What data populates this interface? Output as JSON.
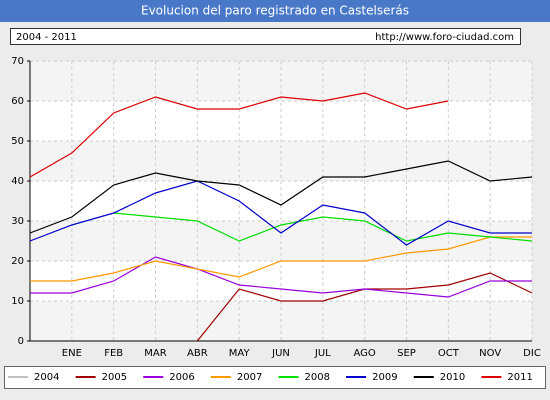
{
  "chart_data": {
    "type": "line",
    "title": "Evolucion del paro registrado en Castelserás",
    "subtitle": "2004 - 2011",
    "source": "http://www.foro-ciudad.com",
    "categories": [
      null,
      "ENE",
      "FEB",
      "MAR",
      "ABR",
      "MAY",
      "JUN",
      "JUL",
      "AGO",
      "SEP",
      "OCT",
      "NOV",
      "DIC"
    ],
    "ylim": [
      0,
      70
    ],
    "yticks": [
      0,
      10,
      20,
      30,
      40,
      50,
      60,
      70
    ],
    "grid": true,
    "legend": "bottom",
    "series": [
      {
        "name": "2004",
        "color": "#c0c0c0",
        "values": [
          null,
          null,
          null,
          null,
          null,
          null,
          null,
          null,
          null,
          null,
          null,
          null,
          null
        ]
      },
      {
        "name": "2005",
        "color": "#a00000",
        "values": [
          null,
          null,
          null,
          null,
          0,
          13,
          10,
          10,
          13,
          13,
          14,
          17,
          12
        ]
      },
      {
        "name": "2006",
        "color": "#9900dd",
        "values": [
          12,
          12,
          15,
          21,
          18,
          14,
          13,
          12,
          13,
          12,
          11,
          15,
          15
        ]
      },
      {
        "name": "2007",
        "color": "#ff9900",
        "values": [
          15,
          15,
          17,
          20,
          18,
          16,
          20,
          20,
          20,
          22,
          23,
          26,
          26
        ]
      },
      {
        "name": "2008",
        "color": "#00dd00",
        "values": [
          null,
          null,
          32,
          31,
          30,
          25,
          29,
          31,
          30,
          25,
          27,
          26,
          25
        ]
      },
      {
        "name": "2009",
        "color": "#0000cc",
        "values": [
          25,
          29,
          32,
          37,
          40,
          35,
          27,
          34,
          32,
          24,
          30,
          27,
          27
        ]
      },
      {
        "name": "2010",
        "color": "#000000",
        "values": [
          27,
          31,
          39,
          42,
          40,
          39,
          34,
          41,
          41,
          43,
          45,
          40,
          41
        ]
      },
      {
        "name": "2011",
        "color": "#dd0000",
        "values": [
          41,
          47,
          57,
          61,
          58,
          58,
          61,
          60,
          62,
          58,
          60,
          null,
          null
        ]
      }
    ]
  }
}
